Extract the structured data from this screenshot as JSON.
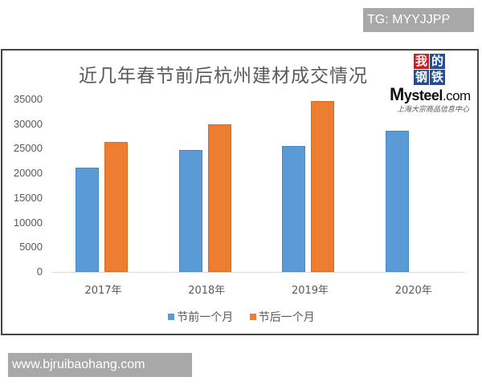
{
  "watermark_top": "TG: MYYJJPP",
  "watermark_bottom": "www.bjruibaohang.com",
  "logo": {
    "chars": [
      "我",
      "的",
      "钢",
      "铁"
    ],
    "char_colors": [
      "#d7191c",
      "#1f4e9c",
      "#1f4e9c",
      "#1f4e9c"
    ],
    "word_big": "M",
    "word_rest": "ysteel",
    "word_dotcom": ".com",
    "subtitle": "上海大宗商品信息中心"
  },
  "colors": {
    "before": "#5B9BD5",
    "after": "#ED7D31"
  },
  "chart_data": {
    "type": "bar",
    "title": "近几年春节前后杭州建材成交情况",
    "xlabel": "",
    "ylabel": "",
    "categories": [
      "2017年",
      "2018年",
      "2019年",
      "2020年"
    ],
    "series": [
      {
        "name": "节前一个月",
        "color": "#5B9BD5",
        "values": [
          21200,
          24800,
          25600,
          28600
        ]
      },
      {
        "name": "节后一个月",
        "color": "#ED7D31",
        "values": [
          26300,
          30000,
          34700,
          null
        ]
      }
    ],
    "ylim": [
      0,
      35000
    ],
    "yticks": [
      "0",
      "5000",
      "10000",
      "15000",
      "20000",
      "25000",
      "30000",
      "35000"
    ],
    "grid": false,
    "legend_position": "bottom"
  }
}
